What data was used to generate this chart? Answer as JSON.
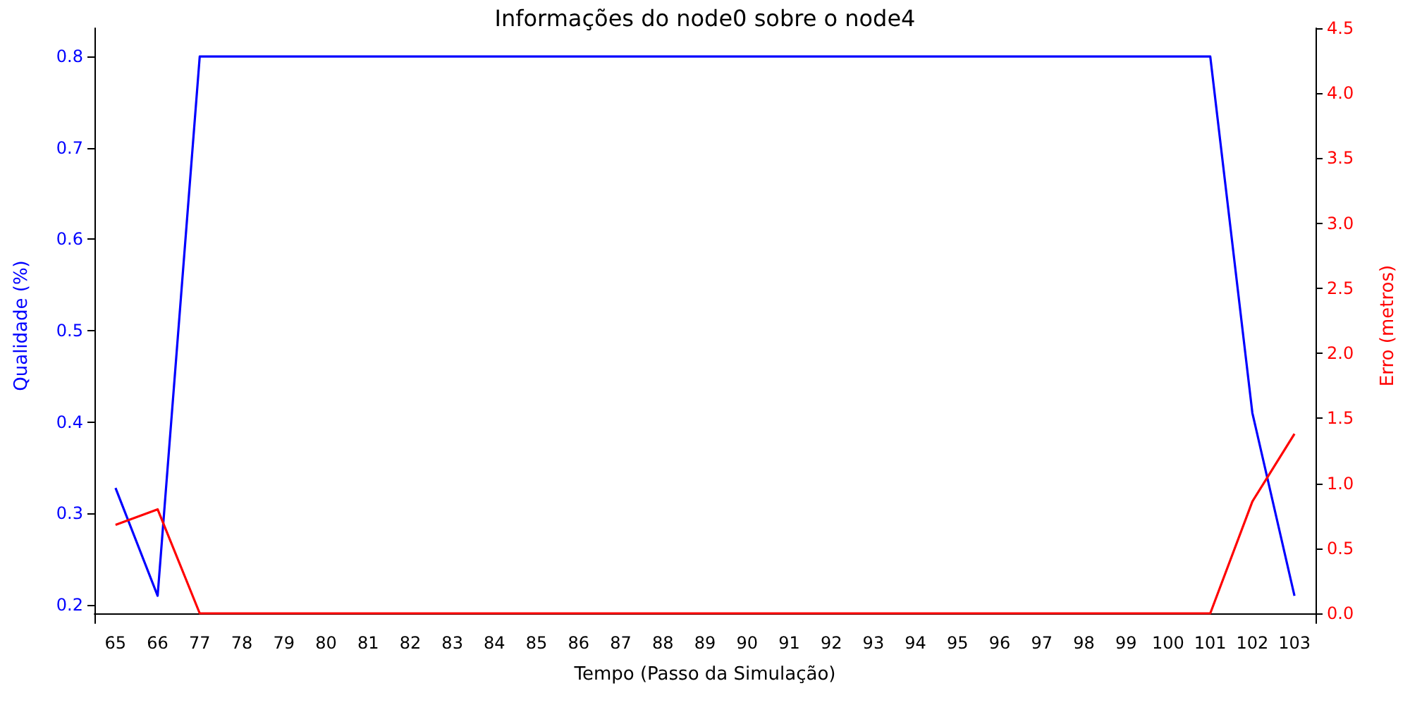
{
  "chart_data": {
    "type": "line",
    "title": "Informações do node0 sobre o node4",
    "xlabel": "Tempo (Passo da Simulação)",
    "ylabel": "Qualidade (%)",
    "y2label": "Erro (metros)",
    "categories": [
      "65",
      "66",
      "77",
      "78",
      "79",
      "80",
      "81",
      "82",
      "83",
      "84",
      "85",
      "86",
      "87",
      "88",
      "89",
      "90",
      "91",
      "92",
      "93",
      "94",
      "95",
      "96",
      "97",
      "98",
      "99",
      "100",
      "101",
      "102",
      "103"
    ],
    "series": [
      {
        "color": "#0000ff",
        "values": [
          0.328,
          0.21,
          0.8,
          0.8,
          0.8,
          0.8,
          0.8,
          0.8,
          0.8,
          0.8,
          0.8,
          0.8,
          0.8,
          0.8,
          0.8,
          0.8,
          0.8,
          0.8,
          0.8,
          0.8,
          0.8,
          0.8,
          0.8,
          0.8,
          0.8,
          0.8,
          0.8,
          0.41,
          0.21
        ]
      },
      {
        "color": "#ff0000",
        "axis": "y2",
        "values": [
          0.68,
          0.8,
          0,
          0,
          0,
          0,
          0,
          0,
          0,
          0,
          0,
          0,
          0,
          0,
          0,
          0,
          0,
          0,
          0,
          0,
          0,
          0,
          0,
          0,
          0,
          0,
          0,
          0.86,
          1.38
        ]
      }
    ],
    "ylim": [
      0.18,
      0.831
    ],
    "yticks": [
      0.2,
      0.3,
      0.4,
      0.5,
      0.6,
      0.7,
      0.8
    ],
    "y2lim": [
      -0.076,
      4.5
    ],
    "y2ticks": [
      {
        "value": 0,
        "label": "0.0"
      },
      0.5,
      {
        "value": 1,
        "label": "1.0"
      },
      1.5,
      {
        "value": 2,
        "label": "2.0"
      },
      2.5,
      {
        "value": 3,
        "label": "3.0"
      },
      3.5,
      {
        "value": 4,
        "label": "4.0"
      },
      4.5
    ],
    "grid": false,
    "marker": "none",
    "line_style": "solid"
  }
}
